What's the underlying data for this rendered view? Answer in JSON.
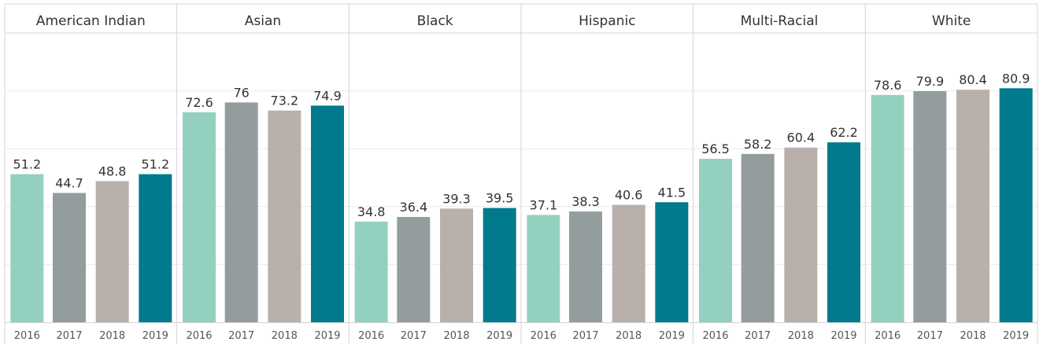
{
  "chart_data": {
    "type": "bar",
    "title": "",
    "xlabel": "",
    "ylabel": "",
    "ylim": [
      0,
      100
    ],
    "grid": true,
    "legend": "none",
    "years": [
      "2016",
      "2017",
      "2018",
      "2019"
    ],
    "colors": [
      "#94d0c0",
      "#949d9e",
      "#bab0ab",
      "#007a8c"
    ],
    "panels": [
      {
        "name": "American Indian",
        "values": [
          51.2,
          44.7,
          48.8,
          51.2
        ],
        "labels": [
          "51.2",
          "44.7",
          "48.8",
          "51.2"
        ]
      },
      {
        "name": "Asian",
        "values": [
          72.6,
          76.0,
          73.2,
          74.9
        ],
        "labels": [
          "72.6",
          "76",
          "73.2",
          "74.9"
        ]
      },
      {
        "name": "Black",
        "values": [
          34.8,
          36.4,
          39.3,
          39.5
        ],
        "labels": [
          "34.8",
          "36.4",
          "39.3",
          "39.5"
        ]
      },
      {
        "name": "Hispanic",
        "values": [
          37.1,
          38.3,
          40.6,
          41.5
        ],
        "labels": [
          "37.1",
          "38.3",
          "40.6",
          "41.5"
        ]
      },
      {
        "name": "Multi-Racial",
        "values": [
          56.5,
          58.2,
          60.4,
          62.2
        ],
        "labels": [
          "56.5",
          "58.2",
          "60.4",
          "62.2"
        ]
      },
      {
        "name": "White",
        "values": [
          78.6,
          79.9,
          80.4,
          80.9
        ],
        "labels": [
          "78.6",
          "79.9",
          "80.4",
          "80.9"
        ]
      }
    ]
  }
}
